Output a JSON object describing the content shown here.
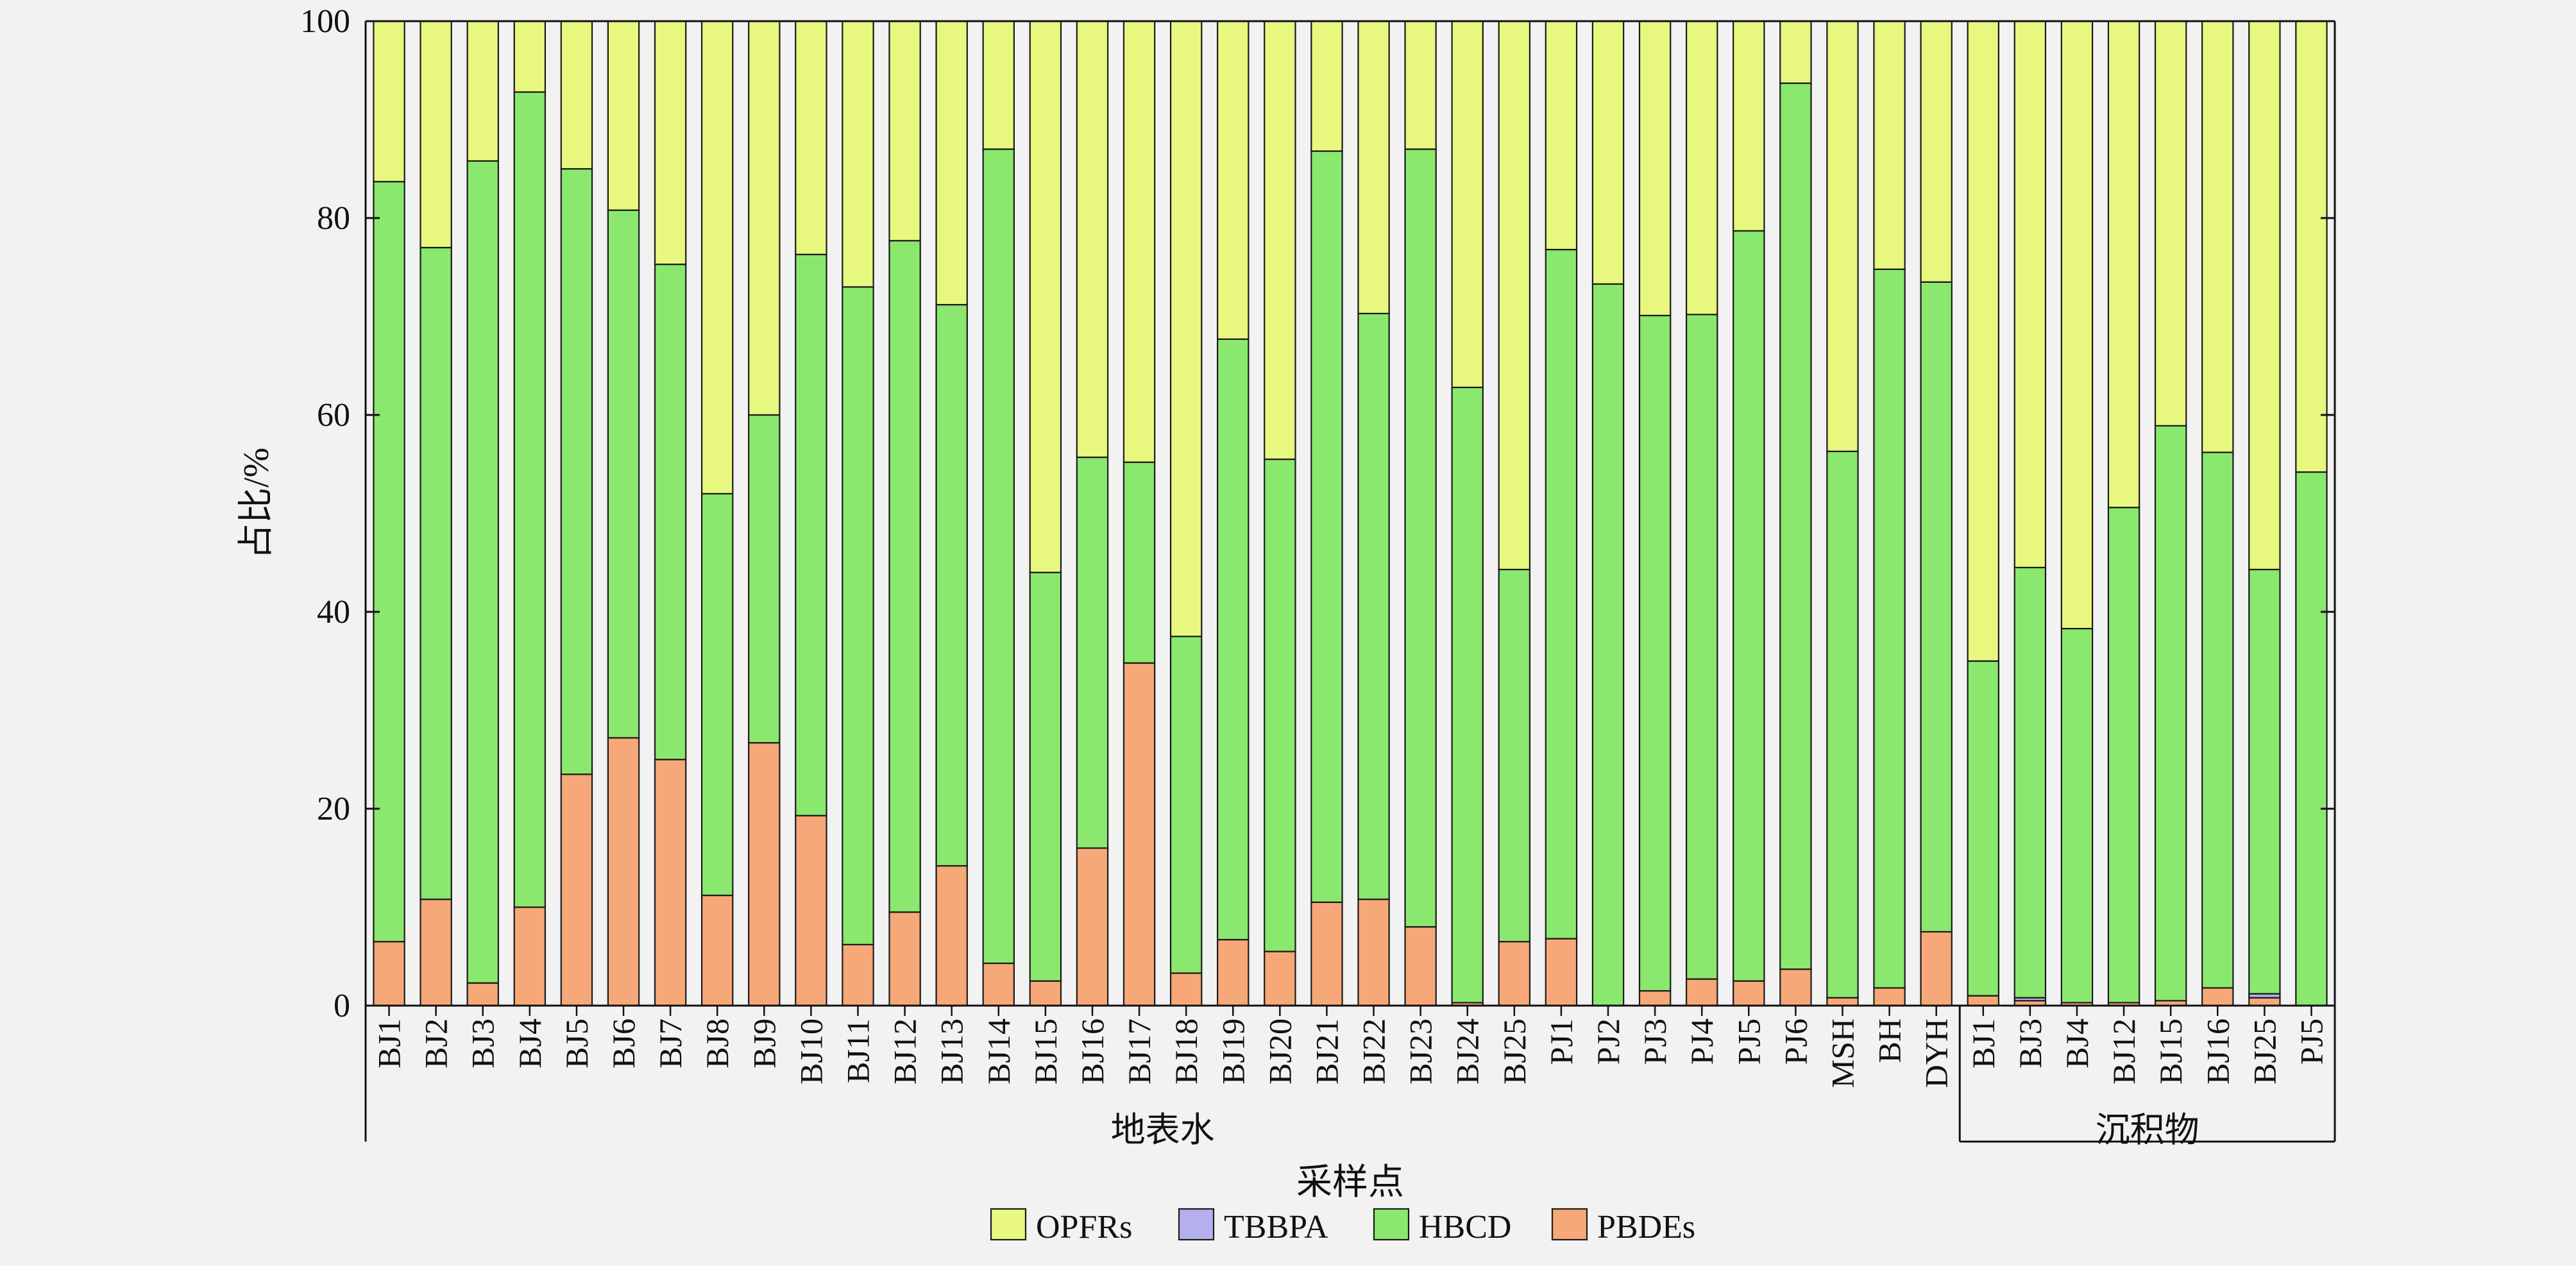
{
  "chart_data": {
    "type": "bar",
    "stacked": true,
    "ylabel": "占比/%",
    "xlabel": "采样点",
    "ylim": [
      0,
      100
    ],
    "yticks": [
      0,
      20,
      40,
      60,
      80,
      100
    ],
    "grid": false,
    "legend_position": "bottom-center",
    "groups": [
      {
        "label": "地表水",
        "count": 34
      },
      {
        "label": "沉积物",
        "count": 8
      }
    ],
    "categories": [
      "BJ1",
      "BJ2",
      "BJ3",
      "BJ4",
      "BJ5",
      "BJ6",
      "BJ7",
      "BJ8",
      "BJ9",
      "BJ10",
      "BJ11",
      "BJ12",
      "BJ13",
      "BJ14",
      "BJ15",
      "BJ16",
      "BJ17",
      "BJ18",
      "BJ19",
      "BJ20",
      "BJ21",
      "BJ22",
      "BJ23",
      "BJ24",
      "BJ25",
      "PJ1",
      "PJ2",
      "PJ3",
      "PJ4",
      "PJ5",
      "PJ6",
      "MSH",
      "BH",
      "DYH",
      "BJ1",
      "BJ3",
      "BJ4",
      "BJ12",
      "BJ15",
      "BJ16",
      "BJ25",
      "PJ5"
    ],
    "series": [
      {
        "name": "PBDEs",
        "color": "#f6a878",
        "values": [
          6.5,
          10.8,
          2.3,
          10.0,
          23.5,
          27.2,
          25.0,
          11.2,
          26.7,
          19.3,
          6.2,
          9.5,
          14.2,
          4.3,
          2.5,
          16.0,
          34.8,
          3.3,
          6.7,
          5.5,
          10.5,
          10.8,
          8.0,
          0.3,
          6.5,
          6.8,
          0,
          1.5,
          2.7,
          2.5,
          3.7,
          0.8,
          1.8,
          7.5,
          1.0,
          0.5,
          0.3,
          0.3,
          0.5,
          1.8,
          0.8,
          0
        ]
      },
      {
        "name": "TBBPA",
        "color": "#b4b0ee",
        "values": [
          0,
          0,
          0,
          0,
          0,
          0,
          0,
          0,
          0,
          0,
          0,
          0,
          0,
          0,
          0,
          0,
          0,
          0,
          0,
          0,
          0,
          0,
          0,
          0,
          0,
          0,
          0,
          0,
          0,
          0,
          0,
          0,
          0,
          0,
          0,
          0.3,
          0,
          0,
          0,
          0,
          0.4,
          0
        ]
      },
      {
        "name": "HBCD",
        "color": "#8ae86e",
        "values": [
          77.2,
          66.2,
          83.5,
          82.8,
          61.5,
          53.6,
          50.3,
          40.8,
          33.3,
          57.0,
          66.8,
          68.2,
          57.0,
          82.7,
          41.5,
          39.7,
          20.4,
          34.2,
          61.0,
          50.0,
          76.3,
          59.5,
          79.0,
          62.5,
          37.8,
          70.0,
          73.3,
          68.6,
          67.5,
          76.2,
          90.0,
          55.5,
          73.0,
          66.0,
          34.0,
          43.7,
          38.0,
          50.3,
          58.4,
          54.4,
          43.1,
          54.2
        ]
      },
      {
        "name": "OPFRs",
        "color": "#e8f77e",
        "values": [
          16.3,
          23.0,
          14.2,
          7.2,
          15.0,
          19.2,
          24.7,
          48.0,
          40.0,
          23.7,
          27.0,
          22.3,
          28.8,
          13.0,
          56.0,
          44.3,
          44.8,
          62.5,
          32.3,
          44.5,
          13.2,
          29.7,
          13.0,
          37.2,
          55.7,
          23.2,
          26.7,
          29.9,
          29.8,
          21.3,
          6.3,
          43.7,
          25.2,
          26.5,
          65.0,
          55.5,
          61.7,
          49.4,
          41.1,
          43.8,
          55.7,
          45.8
        ]
      }
    ],
    "legend": [
      {
        "label": "OPFRs",
        "color": "#e8f77e"
      },
      {
        "label": "TBBPA",
        "color": "#b4b0ee"
      },
      {
        "label": "HBCD",
        "color": "#8ae86e"
      },
      {
        "label": "PBDEs",
        "color": "#f6a878"
      }
    ]
  }
}
